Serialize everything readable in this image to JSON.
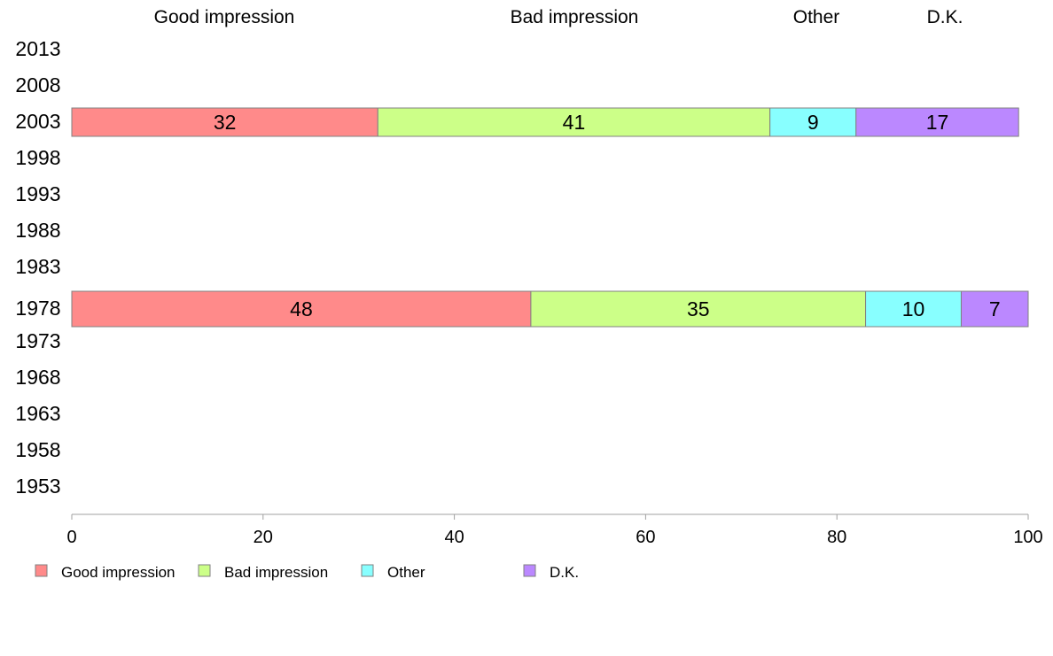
{
  "chart_data": {
    "type": "bar",
    "orientation": "horizontal",
    "stacked": true,
    "categories": [
      "2013",
      "2008",
      "2003",
      "1998",
      "1993",
      "1988",
      "1983",
      "1978",
      "1973",
      "1968",
      "1963",
      "1958",
      "1953"
    ],
    "series": [
      {
        "name": "Good impression",
        "color": "#ff8a8a",
        "values": [
          null,
          null,
          32,
          null,
          null,
          null,
          null,
          48,
          null,
          null,
          null,
          null,
          null
        ]
      },
      {
        "name": "Bad impression",
        "color": "#ccff88",
        "values": [
          null,
          null,
          41,
          null,
          null,
          null,
          null,
          35,
          null,
          null,
          null,
          null,
          null
        ]
      },
      {
        "name": "Other",
        "color": "#88ffff",
        "values": [
          null,
          null,
          9,
          null,
          null,
          null,
          null,
          10,
          null,
          null,
          null,
          null,
          null
        ]
      },
      {
        "name": "D.K.",
        "color": "#bb88ff",
        "values": [
          null,
          null,
          17,
          null,
          null,
          null,
          null,
          7,
          null,
          null,
          null,
          null,
          null
        ]
      }
    ],
    "column_headers": [
      "Good impression",
      "Bad impression",
      "Other",
      "D.K."
    ],
    "x_ticks": [
      "0",
      "20",
      "40",
      "60",
      "80",
      "100"
    ],
    "xlim": [
      0,
      100
    ],
    "grid": false,
    "legend_position": "bottom-left"
  }
}
